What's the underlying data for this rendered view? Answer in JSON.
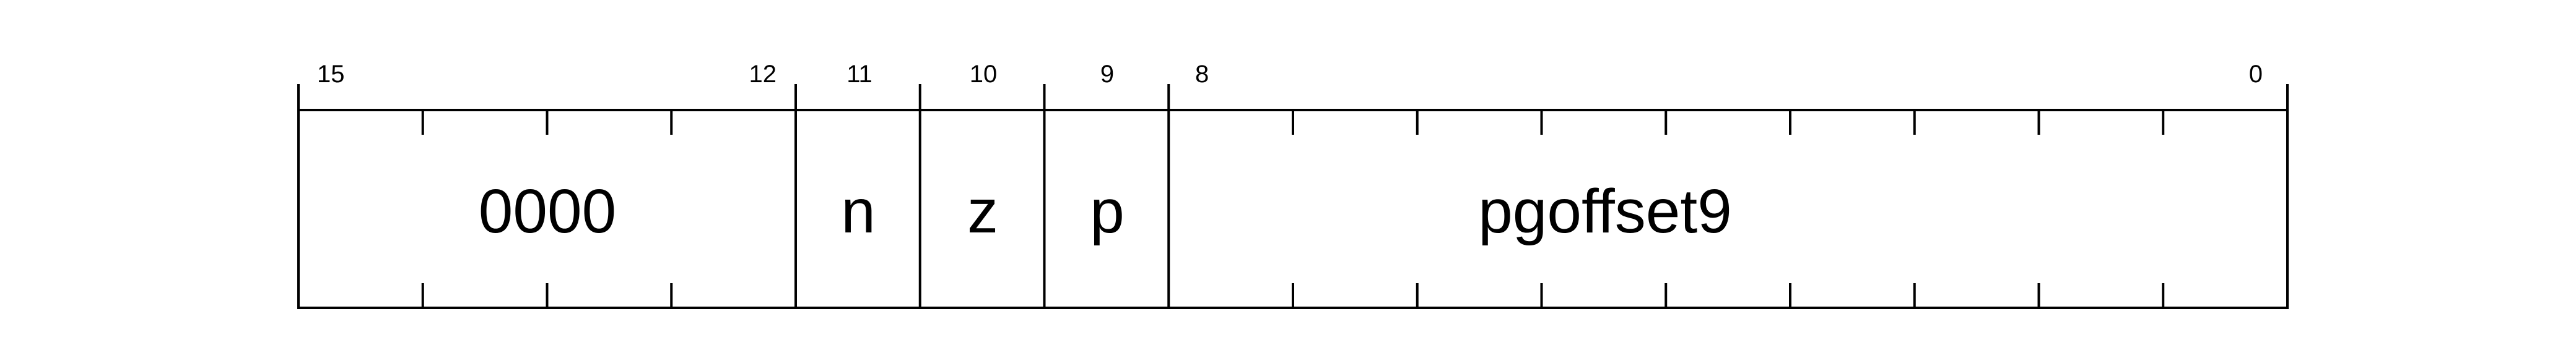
{
  "register": {
    "bit_count": 16,
    "msb": 15,
    "lsb": 0,
    "fields": [
      {
        "name": "0000",
        "high_bit": 15,
        "low_bit": 12
      },
      {
        "name": "n",
        "high_bit": 11,
        "low_bit": 11
      },
      {
        "name": "z",
        "high_bit": 10,
        "low_bit": 10
      },
      {
        "name": "p",
        "high_bit": 9,
        "low_bit": 9
      },
      {
        "name": "pgoffset9",
        "high_bit": 8,
        "low_bit": 0
      }
    ],
    "bit_labels": {
      "f0_high": "15",
      "f0_low": "12",
      "f1": "11",
      "f2": "10",
      "f3": "9",
      "f4_high": "8",
      "f4_low": "0"
    }
  },
  "colors": {
    "line": "#000000",
    "background": "#ffffff",
    "text": "#000000"
  }
}
